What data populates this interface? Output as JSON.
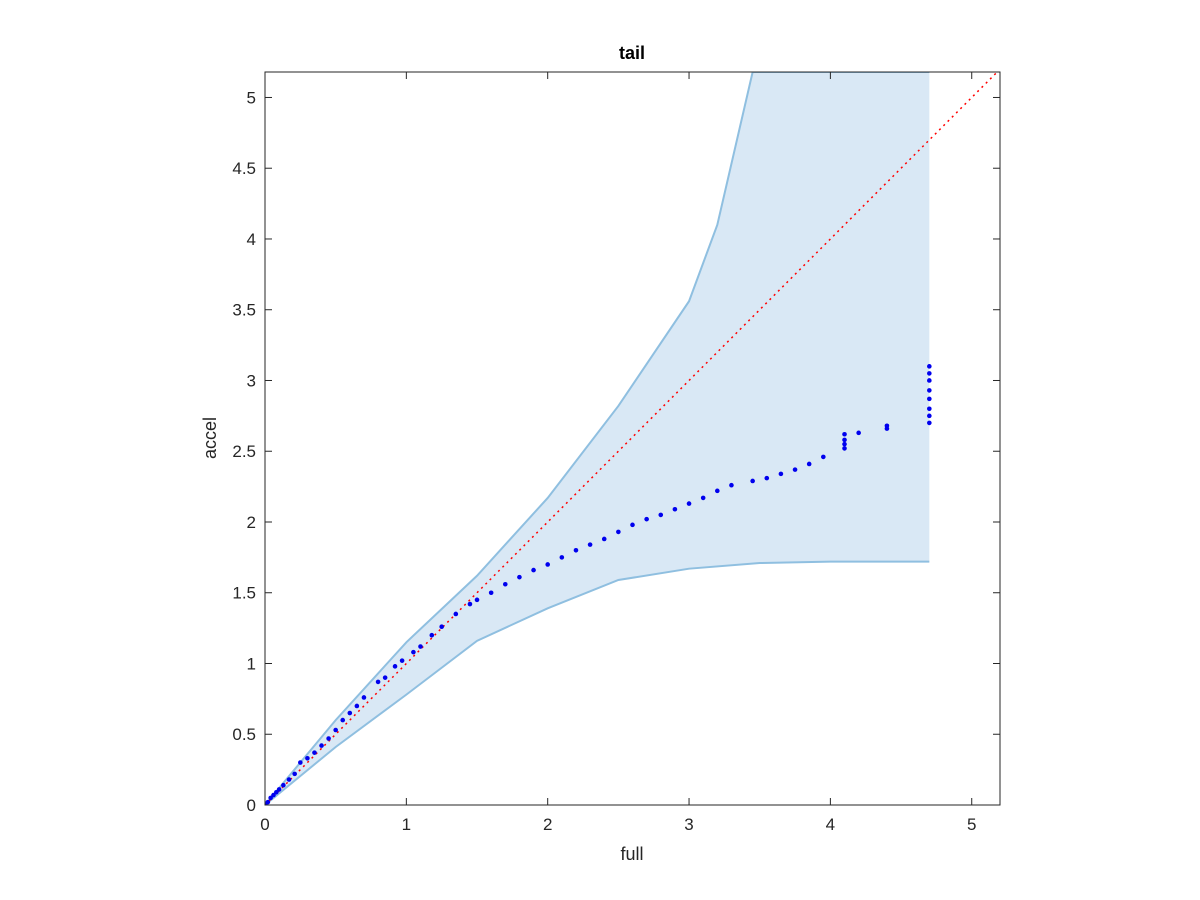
{
  "chart_data": {
    "type": "scatter",
    "title": "tail",
    "x_label": "full",
    "y_label": "accel",
    "xlim": [
      0,
      5.2
    ],
    "ylim": [
      0,
      5.18
    ],
    "xticks": [
      0,
      1,
      2,
      3,
      4,
      5
    ],
    "yticks": [
      0,
      0.5,
      1,
      1.5,
      2,
      2.5,
      3,
      3.5,
      4,
      4.5,
      5
    ],
    "band": {
      "color": "#d9e8f5",
      "edge_color": "#8fbfe0",
      "x_upper": [
        0,
        0.5,
        1,
        1.5,
        2,
        2.5,
        3,
        3.2,
        3.45,
        4.7
      ],
      "upper": [
        0,
        0.6,
        1.15,
        1.62,
        2.17,
        2.82,
        3.56,
        4.1,
        5.18,
        5.18
      ],
      "x_lower": [
        0,
        0.5,
        1,
        1.5,
        2,
        2.5,
        3,
        3.5,
        4,
        4.7
      ],
      "lower": [
        0,
        0.41,
        0.78,
        1.16,
        1.39,
        1.59,
        1.67,
        1.71,
        1.72,
        1.72
      ]
    },
    "reference": {
      "color": "#ff0000",
      "x": [
        0,
        5.18
      ],
      "y": [
        0,
        5.18
      ]
    },
    "points": {
      "color": "#0000ee",
      "x": [
        0,
        0.02,
        0.04,
        0.06,
        0.08,
        0.1,
        0.13,
        0.17,
        0.21,
        0.25,
        0.3,
        0.35,
        0.4,
        0.45,
        0.5,
        0.55,
        0.6,
        0.65,
        0.7,
        0.8,
        0.85,
        0.92,
        0.97,
        1.05,
        1.1,
        1.18,
        1.25,
        1.35,
        1.45,
        1.5,
        1.6,
        1.7,
        1.8,
        1.9,
        2.0,
        2.1,
        2.2,
        2.3,
        2.4,
        2.5,
        2.6,
        2.7,
        2.8,
        2.9,
        3.0,
        3.1,
        3.2,
        3.3,
        3.45,
        3.55,
        3.65,
        3.75,
        3.85,
        3.95,
        4.1,
        4.1,
        4.1,
        4.1,
        4.2,
        4.4,
        4.4,
        4.7,
        4.7,
        4.7,
        4.7,
        4.7,
        4.7,
        4.7,
        4.7
      ],
      "y": [
        0,
        0.02,
        0.05,
        0.07,
        0.09,
        0.11,
        0.14,
        0.18,
        0.22,
        0.3,
        0.33,
        0.37,
        0.42,
        0.47,
        0.53,
        0.6,
        0.65,
        0.7,
        0.76,
        0.87,
        0.9,
        0.98,
        1.02,
        1.08,
        1.12,
        1.2,
        1.26,
        1.35,
        1.42,
        1.45,
        1.5,
        1.56,
        1.61,
        1.66,
        1.7,
        1.75,
        1.8,
        1.84,
        1.88,
        1.93,
        1.98,
        2.02,
        2.05,
        2.09,
        2.13,
        2.17,
        2.22,
        2.26,
        2.29,
        2.31,
        2.34,
        2.37,
        2.41,
        2.46,
        2.52,
        2.55,
        2.58,
        2.62,
        2.63,
        2.66,
        2.68,
        2.7,
        2.75,
        2.8,
        2.87,
        2.93,
        3.0,
        3.05,
        3.1
      ]
    }
  }
}
